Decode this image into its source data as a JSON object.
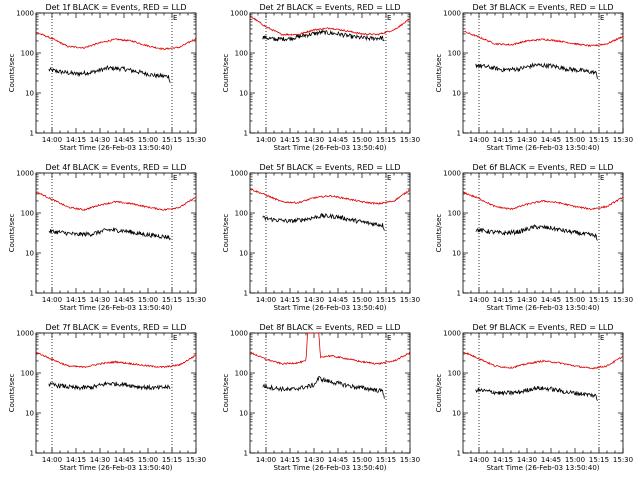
{
  "chart_data": [
    {
      "type": "line",
      "title": "Det 1f BLACK = Events, RED = LLD",
      "xlabel": "Start Time (26-Feb-03 13:50:40)",
      "ylabel": "Counts/sec",
      "yscale": "log",
      "xlim": [
        "13:50",
        "15:30"
      ],
      "ylim": [
        1,
        1000
      ],
      "x_ticks": [
        "14:00",
        "14:15",
        "14:30",
        "14:45",
        "15:00",
        "15:15",
        "15:30"
      ],
      "y_ticks": [
        "1",
        "10",
        "100",
        "1000"
      ],
      "markers": [
        {
          "time": "14:00",
          "label": ""
        },
        {
          "time": "15:15",
          "label": "E"
        }
      ],
      "series": [
        {
          "color": "#000000",
          "x": [
            "13:58",
            "14:05",
            "14:15",
            "14:25",
            "14:35",
            "14:45",
            "14:55",
            "15:05",
            "15:13",
            "15:14"
          ],
          "y": [
            38,
            34,
            30,
            33,
            42,
            40,
            33,
            27,
            26,
            18
          ]
        },
        {
          "color": "#e00000",
          "x": [
            "13:50",
            "14:00",
            "14:10",
            "14:20",
            "14:30",
            "14:40",
            "14:50",
            "15:00",
            "15:10",
            "15:20",
            "15:30"
          ],
          "y": [
            330,
            230,
            145,
            135,
            180,
            220,
            200,
            150,
            125,
            140,
            230
          ]
        }
      ]
    },
    {
      "type": "line",
      "title": "Det 2f BLACK = Events, RED = LLD",
      "xlabel": "Start Time (26-Feb-03 13:50:40)",
      "ylabel": "Counts/sec",
      "yscale": "log",
      "xlim": [
        "13:50",
        "15:30"
      ],
      "ylim": [
        1,
        1000
      ],
      "x_ticks": [
        "14:00",
        "14:15",
        "14:30",
        "14:45",
        "15:00",
        "15:15",
        "15:30"
      ],
      "y_ticks": [
        "1",
        "10",
        "100",
        "1000"
      ],
      "markers": [
        {
          "time": "14:00",
          "label": ""
        },
        {
          "time": "15:15",
          "label": "E"
        }
      ],
      "series": [
        {
          "color": "#000000",
          "x": [
            "13:58",
            "14:05",
            "14:15",
            "14:25",
            "14:35",
            "14:45",
            "14:55",
            "15:05",
            "15:13",
            "15:14"
          ],
          "y": [
            250,
            220,
            230,
            280,
            330,
            300,
            250,
            230,
            240,
            180
          ]
        },
        {
          "color": "#e00000",
          "x": [
            "13:50",
            "14:00",
            "14:10",
            "14:20",
            "14:30",
            "14:40",
            "14:50",
            "15:00",
            "15:10",
            "15:20",
            "15:30"
          ],
          "y": [
            850,
            450,
            290,
            290,
            380,
            420,
            360,
            300,
            290,
            380,
            700
          ]
        }
      ]
    },
    {
      "type": "line",
      "title": "Det 3f BLACK = Events, RED = LLD",
      "xlabel": "Start Time (26-Feb-03 13:50:40)",
      "ylabel": "Counts/sec",
      "yscale": "log",
      "xlim": [
        "13:50",
        "15:30"
      ],
      "ylim": [
        1,
        1000
      ],
      "x_ticks": [
        "14:00",
        "14:15",
        "14:30",
        "14:45",
        "15:00",
        "15:15",
        "15:30"
      ],
      "y_ticks": [
        "1",
        "10",
        "100",
        "1000"
      ],
      "markers": [
        {
          "time": "14:00",
          "label": ""
        },
        {
          "time": "15:15",
          "label": "E"
        }
      ],
      "series": [
        {
          "color": "#000000",
          "x": [
            "13:58",
            "14:05",
            "14:15",
            "14:25",
            "14:35",
            "14:45",
            "14:55",
            "15:05",
            "15:13",
            "15:14"
          ],
          "y": [
            50,
            45,
            38,
            40,
            50,
            48,
            40,
            36,
            32,
            25
          ]
        },
        {
          "color": "#e00000",
          "x": [
            "13:50",
            "14:00",
            "14:10",
            "14:20",
            "14:30",
            "14:40",
            "14:50",
            "15:00",
            "15:10",
            "15:20",
            "15:30"
          ],
          "y": [
            350,
            250,
            170,
            160,
            200,
            220,
            200,
            170,
            150,
            170,
            260
          ]
        }
      ]
    },
    {
      "type": "line",
      "title": "Det 4f BLACK = Events, RED = LLD",
      "xlabel": "Start Time (26-Feb-03 13:50:40)",
      "ylabel": "Counts/sec",
      "yscale": "log",
      "xlim": [
        "13:50",
        "15:30"
      ],
      "ylim": [
        1,
        1000
      ],
      "x_ticks": [
        "14:00",
        "14:15",
        "14:30",
        "14:45",
        "15:00",
        "15:15",
        "15:30"
      ],
      "y_ticks": [
        "1",
        "10",
        "100",
        "1000"
      ],
      "markers": [
        {
          "time": "14:00",
          "label": ""
        },
        {
          "time": "15:15",
          "label": "E"
        }
      ],
      "series": [
        {
          "color": "#000000",
          "x": [
            "13:58",
            "14:05",
            "14:15",
            "14:25",
            "14:35",
            "14:45",
            "14:55",
            "15:05",
            "15:13",
            "15:14"
          ],
          "y": [
            35,
            33,
            29,
            30,
            38,
            36,
            30,
            27,
            25,
            22
          ]
        },
        {
          "color": "#e00000",
          "x": [
            "13:50",
            "14:00",
            "14:10",
            "14:20",
            "14:30",
            "14:40",
            "14:50",
            "15:00",
            "15:10",
            "15:20",
            "15:30"
          ],
          "y": [
            340,
            220,
            140,
            120,
            160,
            190,
            170,
            140,
            120,
            140,
            250
          ]
        }
      ]
    },
    {
      "type": "line",
      "title": "Det 5f BLACK = Events, RED = LLD",
      "xlabel": "Start Time (26-Feb-03 13:50:40)",
      "ylabel": "Counts/sec",
      "yscale": "log",
      "xlim": [
        "13:50",
        "15:30"
      ],
      "ylim": [
        1,
        1000
      ],
      "x_ticks": [
        "14:00",
        "14:15",
        "14:30",
        "14:45",
        "15:00",
        "15:15",
        "15:30"
      ],
      "y_ticks": [
        "1",
        "10",
        "100",
        "1000"
      ],
      "markers": [
        {
          "time": "14:00",
          "label": ""
        },
        {
          "time": "15:15",
          "label": "E"
        }
      ],
      "series": [
        {
          "color": "#000000",
          "x": [
            "13:58",
            "14:05",
            "14:15",
            "14:25",
            "14:35",
            "14:45",
            "14:55",
            "15:05",
            "15:13",
            "15:14"
          ],
          "y": [
            75,
            68,
            62,
            70,
            85,
            80,
            65,
            55,
            50,
            40
          ]
        },
        {
          "color": "#e00000",
          "x": [
            "13:50",
            "14:00",
            "14:10",
            "14:20",
            "14:30",
            "14:40",
            "14:50",
            "15:00",
            "15:10",
            "15:20",
            "15:30"
          ],
          "y": [
            400,
            280,
            190,
            180,
            240,
            270,
            230,
            190,
            170,
            200,
            380
          ]
        }
      ]
    },
    {
      "type": "line",
      "title": "Det 6f BLACK = Events, RED = LLD",
      "xlabel": "Start Time (26-Feb-03 13:50:40)",
      "ylabel": "Counts/sec",
      "yscale": "log",
      "xlim": [
        "13:50",
        "15:30"
      ],
      "ylim": [
        1,
        1000
      ],
      "x_ticks": [
        "14:00",
        "14:15",
        "14:30",
        "14:45",
        "15:00",
        "15:15",
        "15:30"
      ],
      "y_ticks": [
        "1",
        "10",
        "100",
        "1000"
      ],
      "markers": [
        {
          "time": "14:00",
          "label": ""
        },
        {
          "time": "15:15",
          "label": "E"
        }
      ],
      "series": [
        {
          "color": "#000000",
          "x": [
            "13:58",
            "14:05",
            "14:15",
            "14:25",
            "14:35",
            "14:45",
            "14:55",
            "15:05",
            "15:13",
            "15:14"
          ],
          "y": [
            38,
            35,
            31,
            34,
            45,
            42,
            35,
            30,
            27,
            20
          ]
        },
        {
          "color": "#e00000",
          "x": [
            "13:50",
            "14:00",
            "14:10",
            "14:20",
            "14:30",
            "14:40",
            "14:50",
            "15:00",
            "15:10",
            "15:20",
            "15:30"
          ],
          "y": [
            330,
            230,
            145,
            125,
            165,
            200,
            180,
            145,
            125,
            145,
            250
          ]
        }
      ]
    },
    {
      "type": "line",
      "title": "Det 7f BLACK = Events, RED = LLD",
      "xlabel": "Start Time (26-Feb-03 13:50:40)",
      "ylabel": "Counts/sec",
      "yscale": "log",
      "xlim": [
        "13:50",
        "15:30"
      ],
      "ylim": [
        1,
        1000
      ],
      "x_ticks": [
        "14:00",
        "14:15",
        "14:30",
        "14:45",
        "15:00",
        "15:15",
        "15:30"
      ],
      "y_ticks": [
        "1",
        "10",
        "100",
        "1000"
      ],
      "markers": [
        {
          "time": "14:00",
          "label": ""
        },
        {
          "time": "15:15",
          "label": "E"
        }
      ],
      "series": [
        {
          "color": "#000000",
          "x": [
            "13:58",
            "14:05",
            "14:15",
            "14:25",
            "14:35",
            "14:45",
            "14:55",
            "15:05",
            "15:13",
            "15:14"
          ],
          "y": [
            52,
            48,
            42,
            44,
            55,
            52,
            45,
            42,
            45,
            38
          ]
        },
        {
          "color": "#e00000",
          "x": [
            "13:50",
            "14:00",
            "14:10",
            "14:20",
            "14:30",
            "14:40",
            "14:50",
            "15:00",
            "15:10",
            "15:20",
            "15:30"
          ],
          "y": [
            330,
            220,
            150,
            140,
            170,
            190,
            170,
            150,
            140,
            160,
            280
          ]
        }
      ]
    },
    {
      "type": "line",
      "title": "Det 8f BLACK = Events, RED = LLD",
      "xlabel": "Start Time (26-Feb-03 13:50:40)",
      "ylabel": "Counts/sec",
      "yscale": "log",
      "xlim": [
        "13:50",
        "15:30"
      ],
      "ylim": [
        1,
        1000
      ],
      "x_ticks": [
        "14:00",
        "14:15",
        "14:30",
        "14:45",
        "15:00",
        "15:15",
        "15:30"
      ],
      "y_ticks": [
        "1",
        "10",
        "100",
        "1000"
      ],
      "markers": [
        {
          "time": "14:00",
          "label": ""
        },
        {
          "time": "15:15",
          "label": "E"
        }
      ],
      "series": [
        {
          "color": "#000000",
          "x": [
            "13:58",
            "14:05",
            "14:15",
            "14:25",
            "14:30",
            "14:33",
            "14:37",
            "14:45",
            "14:55",
            "15:05",
            "15:13",
            "15:14"
          ],
          "y": [
            48,
            42,
            38,
            45,
            50,
            75,
            65,
            55,
            45,
            40,
            35,
            25
          ]
        },
        {
          "color": "#e00000",
          "x": [
            "13:50",
            "14:00",
            "14:10",
            "14:20",
            "14:25",
            "14:26",
            "14:33",
            "14:34",
            "14:40",
            "14:50",
            "15:00",
            "15:10",
            "15:20",
            "15:30"
          ],
          "y": [
            330,
            220,
            170,
            180,
            200,
            1000,
            1000,
            250,
            270,
            230,
            190,
            170,
            200,
            320
          ]
        }
      ]
    },
    {
      "type": "line",
      "title": "Det 9f BLACK = Events, RED = LLD",
      "xlabel": "Start Time (26-Feb-03 13:50:40)",
      "ylabel": "Counts/sec",
      "yscale": "log",
      "xlim": [
        "13:50",
        "15:30"
      ],
      "ylim": [
        1,
        1000
      ],
      "x_ticks": [
        "14:00",
        "14:15",
        "14:30",
        "14:45",
        "15:00",
        "15:15",
        "15:30"
      ],
      "y_ticks": [
        "1",
        "10",
        "100",
        "1000"
      ],
      "markers": [
        {
          "time": "14:00",
          "label": ""
        },
        {
          "time": "15:15",
          "label": "E"
        }
      ],
      "series": [
        {
          "color": "#000000",
          "x": [
            "13:58",
            "14:05",
            "14:15",
            "14:25",
            "14:35",
            "14:45",
            "14:55",
            "15:05",
            "15:13",
            "15:14"
          ],
          "y": [
            38,
            35,
            31,
            33,
            42,
            40,
            33,
            30,
            27,
            20
          ]
        },
        {
          "color": "#e00000",
          "x": [
            "13:50",
            "14:00",
            "14:10",
            "14:20",
            "14:30",
            "14:40",
            "14:50",
            "15:00",
            "15:10",
            "15:20",
            "15:30"
          ],
          "y": [
            340,
            230,
            150,
            135,
            170,
            200,
            180,
            150,
            130,
            150,
            260
          ]
        }
      ]
    }
  ]
}
